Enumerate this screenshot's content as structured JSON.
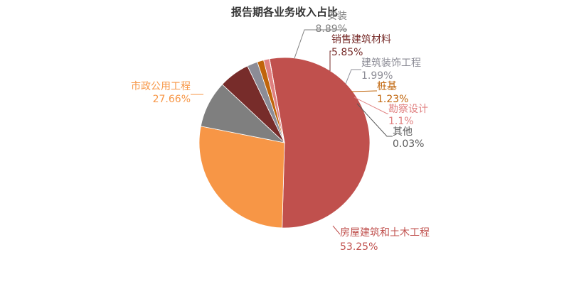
{
  "chart_data": {
    "type": "pie",
    "title": "报告期各业务收入占比",
    "slices": [
      {
        "name": "房屋建筑和土木工程",
        "value": 53.25,
        "value_label": "53.25%",
        "color": "#c0504d"
      },
      {
        "name": "市政公用工程",
        "value": 27.66,
        "value_label": "27.66%",
        "color": "#f79646"
      },
      {
        "name": "安装",
        "value": 8.89,
        "value_label": "8.89%",
        "color": "#7f7f7f"
      },
      {
        "name": "销售建筑材料",
        "value": 5.85,
        "value_label": "5.85%",
        "color": "#772c2a"
      },
      {
        "name": "建筑装饰工程",
        "value": 1.99,
        "value_label": "1.99%",
        "color": "#8c8c96"
      },
      {
        "name": "桩基",
        "value": 1.23,
        "value_label": "1.23%",
        "color": "#c0640a"
      },
      {
        "name": "勘察设计",
        "value": 1.1,
        "value_label": "1.1%",
        "color": "#e08080"
      },
      {
        "name": "其他",
        "value": 0.03,
        "value_label": "0.03%",
        "color": "#595959"
      }
    ]
  }
}
